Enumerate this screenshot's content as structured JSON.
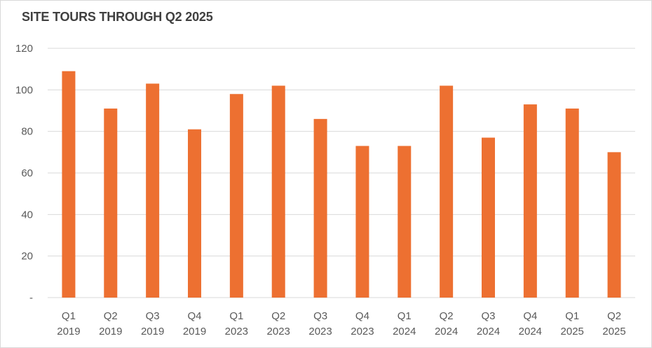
{
  "chart_data": {
    "type": "bar",
    "title": "SITE TOURS THROUGH Q2 2025",
    "categories": [
      [
        "Q1",
        "2019"
      ],
      [
        "Q2",
        "2019"
      ],
      [
        "Q3",
        "2019"
      ],
      [
        "Q4",
        "2019"
      ],
      [
        "Q1",
        "2023"
      ],
      [
        "Q2",
        "2023"
      ],
      [
        "Q3",
        "2023"
      ],
      [
        "Q4",
        "2023"
      ],
      [
        "Q1",
        "2024"
      ],
      [
        "Q2",
        "2024"
      ],
      [
        "Q3",
        "2024"
      ],
      [
        "Q4",
        "2024"
      ],
      [
        "Q1",
        "2025"
      ],
      [
        "Q2",
        "2025"
      ]
    ],
    "values": [
      109,
      91,
      103,
      81,
      98,
      102,
      86,
      73,
      73,
      102,
      77,
      93,
      91,
      70
    ],
    "ylim": [
      0,
      120
    ],
    "yticks": [
      0,
      20,
      40,
      60,
      80,
      100,
      120
    ],
    "ytick_labels": [
      "-",
      "20",
      "40",
      "60",
      "80",
      "100",
      "120"
    ],
    "xlabel": "",
    "ylabel": "",
    "grid": true,
    "legend": "none",
    "bar_color": "#ed7031",
    "grid_color": "#d9d9d9",
    "text_color": "#595959"
  }
}
